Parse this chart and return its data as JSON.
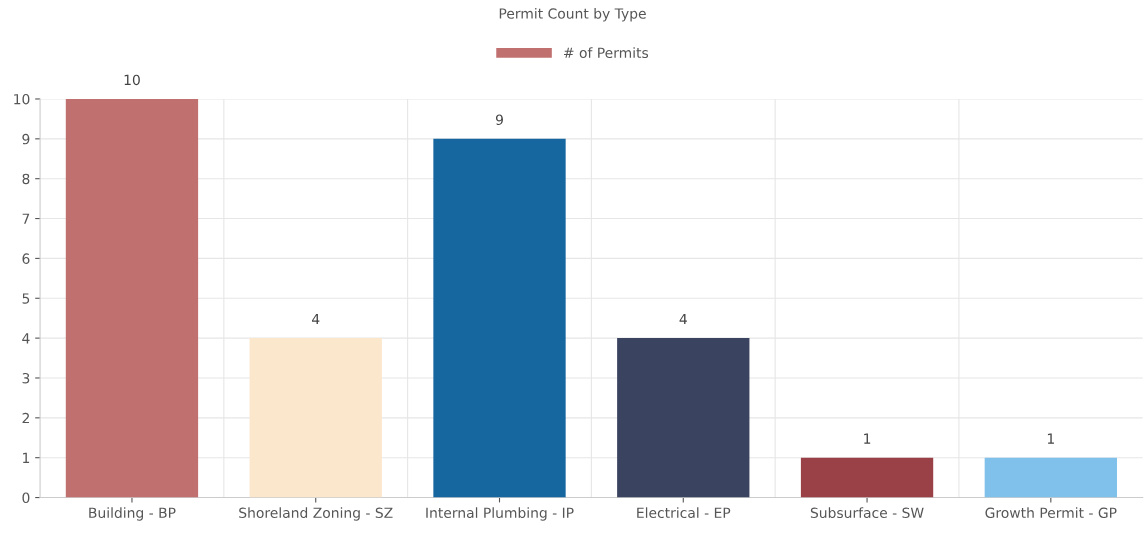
{
  "chart_data": {
    "type": "bar",
    "title": "Permit Count by Type",
    "categories": [
      "Building - BP",
      "Shoreland Zoning - SZ",
      "Internal Plumbing - IP",
      "Electrical - EP",
      "Subsurface - SW",
      "Growth Permit - GP"
    ],
    "series": [
      {
        "name": "# of Permits",
        "color": "#c0706f",
        "colors": [
          "#c0706f",
          "#fbe8cc",
          "#1666a0",
          "#3a4460",
          "#9a4148",
          "#7fc1ea"
        ],
        "values": [
          10,
          4,
          9,
          4,
          1,
          1
        ]
      }
    ],
    "ylim": [
      0,
      10
    ],
    "yticks": [
      0,
      1,
      2,
      3,
      4,
      5,
      6,
      7,
      8,
      9,
      10
    ],
    "grid": true,
    "legend": "top",
    "data_labels": true
  }
}
